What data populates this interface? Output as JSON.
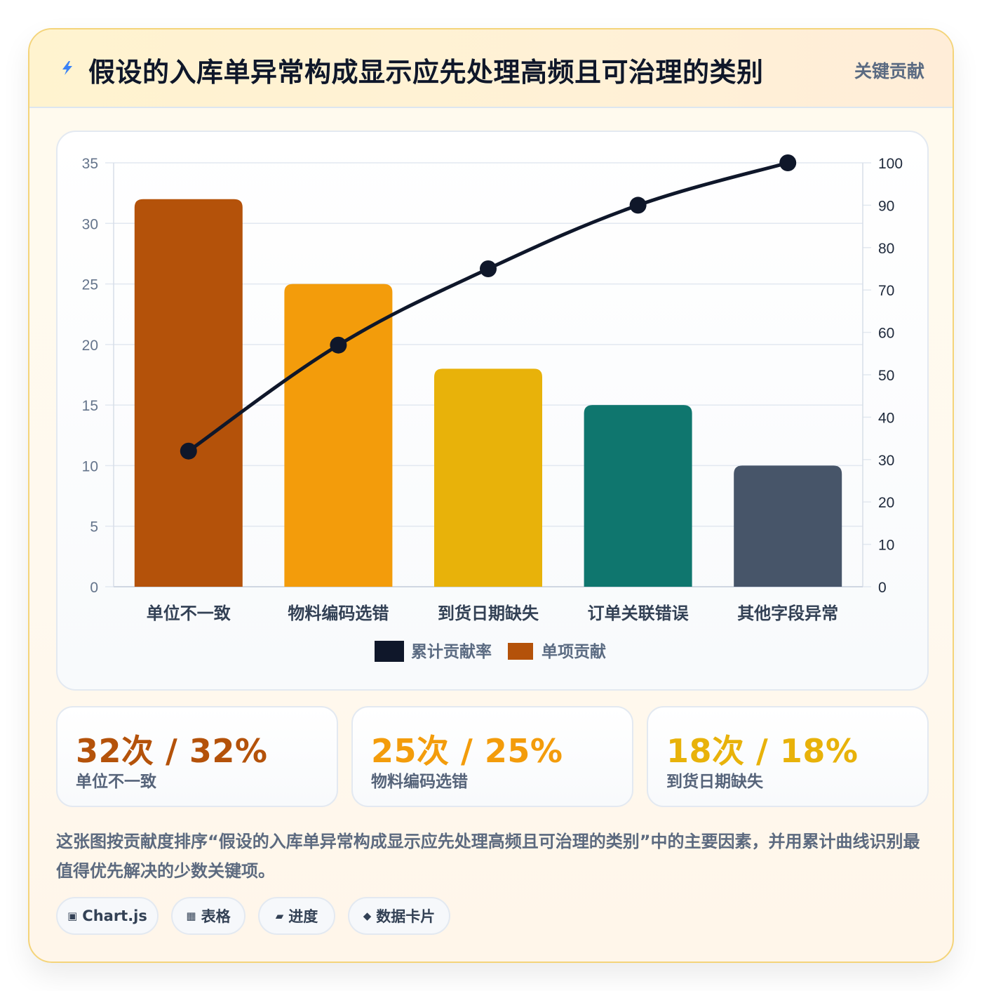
{
  "header": {
    "title": "假设的入库单异常构成显示应先处理高频且可治理的类别",
    "tag": "关键贡献",
    "icon": "lightning-icon"
  },
  "chart_data": {
    "type": "bar",
    "categories": [
      "单位不一致",
      "物料编码选错",
      "到货日期缺失",
      "订单关联错误",
      "其他字段异常"
    ],
    "series": [
      {
        "name": "单项贡献",
        "type": "bar",
        "axis": "left",
        "values": [
          32,
          25,
          18,
          15,
          10
        ],
        "colors": [
          "#b4520a",
          "#f39c0b",
          "#e8b20a",
          "#0f766e",
          "#475569"
        ]
      },
      {
        "name": "累计贡献率",
        "type": "line",
        "axis": "right",
        "values": [
          32,
          57,
          75,
          90,
          100
        ],
        "color": "#0f172a"
      }
    ],
    "y_left": {
      "min": 0,
      "max": 35,
      "ticks": [
        0,
        5,
        10,
        15,
        20,
        25,
        30,
        35
      ]
    },
    "y_right": {
      "min": 0,
      "max": 100,
      "ticks": [
        0,
        10,
        20,
        30,
        40,
        50,
        60,
        70,
        80,
        90,
        100
      ]
    },
    "legend": [
      "累计贡献率",
      "单项贡献"
    ],
    "legend_position": "bottom",
    "grid": true
  },
  "stats": [
    {
      "value": "32次 / 32%",
      "label": "单位不一致",
      "color": "#b4520a"
    },
    {
      "value": "25次 / 25%",
      "label": "物料编码选错",
      "color": "#f39c0b"
    },
    {
      "value": "18次 / 18%",
      "label": "到货日期缺失",
      "color": "#e8b20a"
    }
  ],
  "description": "这张图按贡献度排序“假设的入库单异常构成显示应先处理高频且可治理的类别”中的主要因素，并用累计曲线识别最值得优先解决的少数关键项。",
  "chips": [
    {
      "icon": "▣",
      "label": "Chart.js"
    },
    {
      "icon": "▦",
      "label": "表格"
    },
    {
      "icon": "▰",
      "label": "进度"
    },
    {
      "icon": "◆",
      "label": "数据卡片"
    }
  ]
}
